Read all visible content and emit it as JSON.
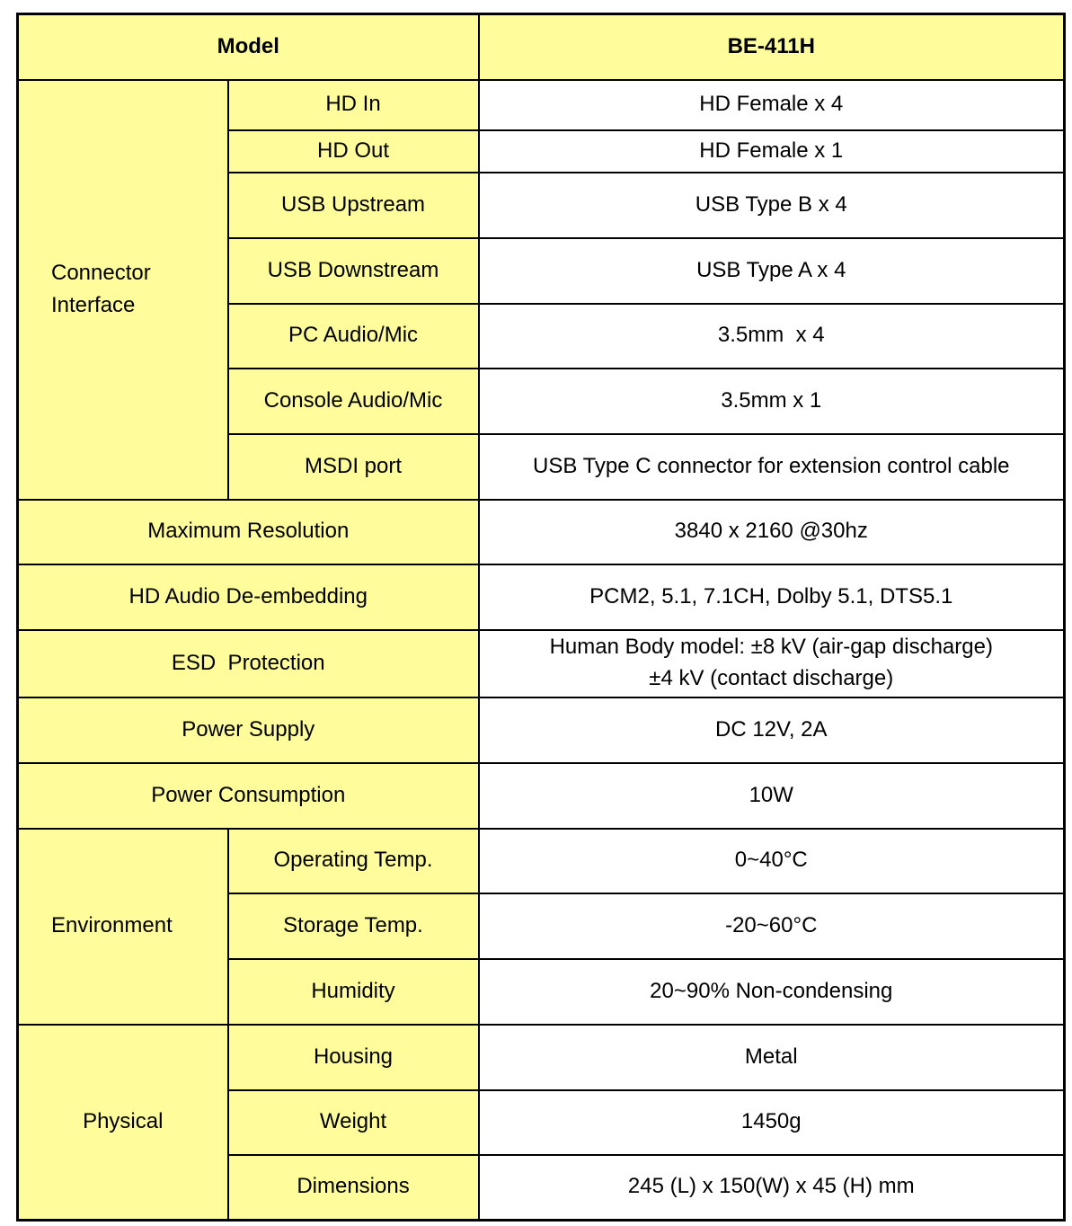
{
  "header": {
    "label": "Model",
    "value": "BE-411H"
  },
  "colors": {
    "label_bg": "#FFFD9B",
    "value_bg": "#FFFFFF",
    "border": "#000000"
  },
  "connector": {
    "group": "Connector Interface",
    "rows": [
      {
        "label": "HD In",
        "value": "HD Female x 4"
      },
      {
        "label": "HD Out",
        "value": "HD Female x 1"
      },
      {
        "label": "USB Upstream",
        "value": "USB Type B x 4"
      },
      {
        "label": "USB Downstream",
        "value": "USB Type A x 4"
      },
      {
        "label": "PC Audio/Mic",
        "value": "3.5mm  x 4"
      },
      {
        "label": "Console Audio/Mic",
        "value": "3.5mm x 1"
      },
      {
        "label": "MSDI port",
        "value": "USB Type C connector for extension control cable"
      }
    ]
  },
  "single": [
    {
      "label": "Maximum Resolution",
      "value": "3840 x 2160 @30hz"
    },
    {
      "label": "HD Audio De-embedding",
      "value": "PCM2, 5.1, 7.1CH, Dolby 5.1, DTS5.1"
    },
    {
      "label": "ESD  Protection",
      "value": "Human Body model: ±8 kV (air-gap discharge)",
      "value2": "±4 kV (contact discharge)"
    },
    {
      "label": "Power Supply",
      "value": "DC 12V, 2A"
    },
    {
      "label": "Power Consumption",
      "value": "10W"
    }
  ],
  "environment": {
    "group": "Environment",
    "rows": [
      {
        "label": "Operating Temp.",
        "value": "0~40°C"
      },
      {
        "label": "Storage Temp.",
        "value": "-20~60°C"
      },
      {
        "label": "Humidity",
        "value": "20~90% Non-condensing"
      }
    ]
  },
  "physical": {
    "group": "Physical",
    "rows": [
      {
        "label": "Housing",
        "value": "Metal"
      },
      {
        "label": "Weight",
        "value": "1450g"
      },
      {
        "label": "Dimensions",
        "value": "245 (L) x 150(W) x 45 (H) mm"
      }
    ]
  }
}
